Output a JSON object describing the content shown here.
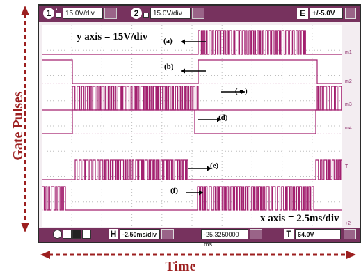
{
  "annotations": {
    "vertical_label": "Gate Pulses",
    "horizontal_label": "Time",
    "y_axis_note": "y axis = 15V/div",
    "x_axis_note": "x axis = 2.5ms/div"
  },
  "scope": {
    "channel1": {
      "number": "1",
      "scale": "15.0V/div"
    },
    "channel2": {
      "number": "2",
      "scale": "15.0V/div"
    },
    "extra": {
      "badge": "E",
      "value": "+/-5.0V"
    },
    "horizontal": {
      "badge": "H",
      "value": "-2.50ms/div"
    },
    "position": {
      "value": "-25.3250000 ms"
    },
    "trigger": {
      "badge": "T",
      "value": "64.0V"
    },
    "markers": [
      "m1",
      "m2",
      "m3",
      "m4",
      "T",
      "+2"
    ]
  },
  "traces": [
    {
      "tag": "(a)"
    },
    {
      "tag": "(b)"
    },
    {
      "tag": "( c )"
    },
    {
      "tag": "(d)"
    },
    {
      "tag": "(e)"
    },
    {
      "tag": "(f)"
    }
  ],
  "colors": {
    "trace": "#a3206f",
    "bar": "#77325e",
    "label": "#9c1f1f"
  }
}
